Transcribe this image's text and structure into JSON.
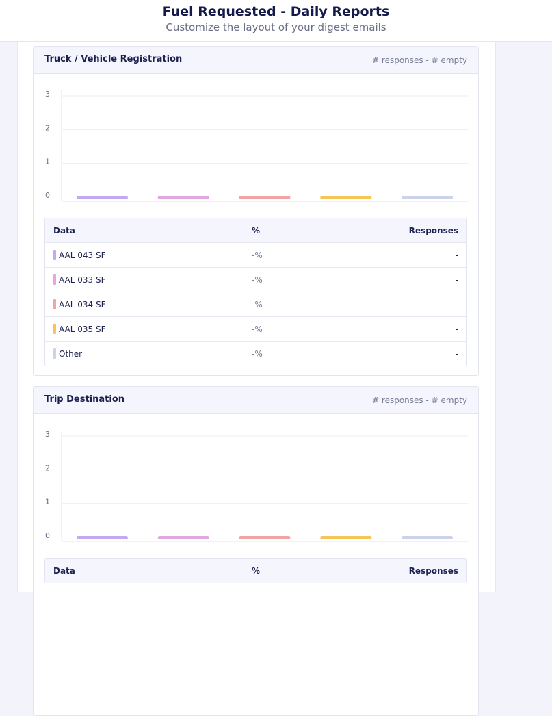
{
  "header": {
    "title": "Fuel Requested - Daily Reports",
    "subtitle": "Customize the layout of your digest emails"
  },
  "sections": [
    {
      "title": "Truck / Vehicle Registration",
      "meta": "# responses - # empty",
      "chart": {
        "type": "bar",
        "categories": [
          null,
          null,
          null,
          null,
          null
        ],
        "values": [
          0,
          0,
          0,
          0,
          0
        ],
        "colors": [
          "#c4a8f4",
          "#e3a6e0",
          "#f2a4a4",
          "#f6c557",
          "#ccd2ea"
        ],
        "ylim": [
          0,
          3
        ],
        "yticks": [
          0,
          1,
          2,
          3
        ],
        "grid": true
      },
      "table": {
        "columns": [
          "Data",
          "%",
          "Responses"
        ],
        "rows": [
          [
            "AAL 043 SF",
            "-%",
            "-"
          ],
          [
            "AAL 033 SF",
            "-%",
            "-"
          ],
          [
            "AAL 034 SF",
            "-%",
            "-"
          ],
          [
            "AAL 035 SF",
            "-%",
            "-"
          ],
          [
            "Other",
            "-%",
            "-"
          ]
        ]
      }
    },
    {
      "title": "Trip Destination",
      "meta": "# responses - # empty",
      "chart": {
        "type": "bar",
        "categories": [
          null,
          null,
          null,
          null,
          null
        ],
        "values": [
          0,
          0,
          0,
          0,
          0
        ],
        "colors": [
          "#c4a8f4",
          "#e3a6e0",
          "#f2a4a4",
          "#f6c557",
          "#ccd2ea"
        ],
        "ylim": [
          0,
          3
        ],
        "yticks": [
          0,
          1,
          2,
          3
        ],
        "grid": true
      },
      "table": {
        "columns": [
          "Data",
          "%",
          "Responses"
        ],
        "rows": []
      }
    }
  ]
}
